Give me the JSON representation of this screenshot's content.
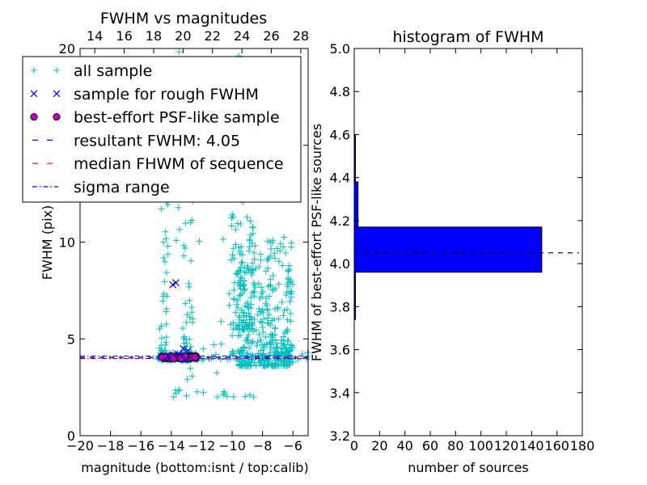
{
  "colors": {
    "all_sample": "#00bfbf",
    "rough_sample": "#0000ff",
    "psf_fill": "#bf00bf",
    "resultant_line": "#0000ff",
    "median_line": "#ff0000",
    "sigma_line": "#0000ff",
    "hist_bar": "#0000ff"
  },
  "chart_data": [
    {
      "type": "scatter",
      "title": "FWHM vs magnitudes",
      "xlabel": "magnitude (bottom:isnt / top:calib)",
      "ylabel": "FWHM (pix)",
      "xlim": [
        -20,
        -5
      ],
      "xticks": [
        -20,
        -18,
        -16,
        -14,
        -12,
        -10,
        -8,
        -6
      ],
      "xticklabels": [
        "−20",
        "−18",
        "−16",
        "−14",
        "−12",
        "−10",
        "−8",
        "−6"
      ],
      "ylim": [
        0,
        20
      ],
      "yticks": [
        0,
        5,
        10,
        15,
        20
      ],
      "yticklabels": [
        "0",
        "5",
        "10",
        "15",
        "20"
      ],
      "top_axis": {
        "xlim": [
          13,
          28.5
        ],
        "ticks": [
          14,
          16,
          18,
          20,
          22,
          24,
          26,
          28
        ],
        "ticklabels": [
          "14",
          "16",
          "18",
          "20",
          "22",
          "24",
          "26",
          "28"
        ]
      },
      "grid": false,
      "legend_position": "upper-left",
      "series": [
        {
          "name": "all sample",
          "marker": "+",
          "clusters": [
            {
              "x_range": [
                -14.9,
                -12.2
              ],
              "y_range": [
                3.9,
                4.3
              ],
              "count": 120
            },
            {
              "x_range": [
                -14.8,
                -14.2
              ],
              "y_range": [
                4.2,
                16.5
              ],
              "count": 45
            },
            {
              "x_range": [
                -13.2,
                -12.6
              ],
              "y_range": [
                4.2,
                15.5
              ],
              "count": 40
            },
            {
              "x_range": [
                -10.2,
                -8.6
              ],
              "y_range": [
                5.5,
                18.5
              ],
              "count": 120
            },
            {
              "x_range": [
                -9.6,
                -6.0
              ],
              "y_range": [
                3.6,
                10.5
              ],
              "count": 360
            },
            {
              "x_range": [
                -12.0,
                -5.0
              ],
              "y_range": [
                3.9,
                4.5
              ],
              "count": 60
            },
            {
              "x_range": [
                -14.5,
                -8.5
              ],
              "y_range": [
                2.0,
                20.0
              ],
              "count": 60
            }
          ]
        },
        {
          "name": "sample for rough FWHM",
          "marker": "x",
          "x": [
            -13.9,
            -13.7,
            -13.2,
            -12.9,
            -13.1,
            -14.2,
            -13.5
          ],
          "y": [
            7.8,
            7.9,
            4.5,
            4.4,
            3.9,
            4.1,
            4.2
          ]
        },
        {
          "name": "best-effort PSF-like sample",
          "marker": "o",
          "x_range": [
            -14.7,
            -12.3
          ],
          "y": 4.05
        }
      ],
      "lines": [
        {
          "name": "resultant FWHM: 4.05",
          "style": "dashed",
          "y": 4.05
        },
        {
          "name": "median FHWM of sequence",
          "style": "dashed",
          "y": 4.02
        },
        {
          "name": "sigma range",
          "style": "dashdot",
          "y": [
            3.98,
            4.12
          ]
        }
      ]
    },
    {
      "type": "bar",
      "orientation": "horizontal",
      "title": "histogram of FWHM",
      "xlabel": "number of sources",
      "ylabel": "FWHM of best-effort PSF-like sources",
      "xlim": [
        0,
        180
      ],
      "xticks": [
        0,
        20,
        40,
        60,
        80,
        100,
        120,
        140,
        160,
        180
      ],
      "xticklabels": [
        "0",
        "20",
        "40",
        "60",
        "80",
        "100",
        "120",
        "140",
        "160",
        "180"
      ],
      "ylim": [
        3.2,
        5.0
      ],
      "yticks": [
        3.2,
        3.4,
        3.6,
        3.8,
        4.0,
        4.2,
        4.4,
        4.6,
        4.8,
        5.0
      ],
      "yticklabels": [
        "3.2",
        "3.4",
        "3.6",
        "3.8",
        "4.0",
        "4.2",
        "4.4",
        "4.6",
        "4.8",
        "5.0"
      ],
      "bins": [
        {
          "y0": 3.74,
          "y1": 3.96,
          "count": 1
        },
        {
          "y0": 3.96,
          "y1": 4.17,
          "count": 148
        },
        {
          "y0": 4.17,
          "y1": 4.38,
          "count": 3
        },
        {
          "y0": 4.38,
          "y1": 4.6,
          "count": 1
        }
      ],
      "reference_line": {
        "style": "dashed",
        "y": 4.05
      }
    }
  ]
}
